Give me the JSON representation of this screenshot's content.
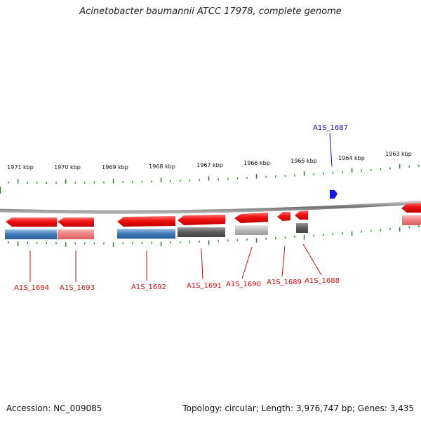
{
  "title": "Acinetobacter baumannii ATCC 17978, complete genome",
  "accession": "Accession: NC_009085",
  "summary": "Topology: circular; Length: 3,976,747 bp; Genes: 3,435",
  "colors": {
    "backbone": "#7a7a7a",
    "forward_gene": "#2020e0",
    "reverse_gene": "#e8141c",
    "tick": "#2a8a2a",
    "label_reverse": "#cc1010",
    "label_forward": "#1010b0"
  },
  "ticks_outer": [
    "1971 kbp",
    "1970 kbp",
    "1969 kbp",
    "1968 kbp",
    "1967 kbp",
    "1966 kbp",
    "1965 kbp",
    "1964 kbp",
    "1963 kbp"
  ],
  "genes": [
    {
      "label": "A1S_1694",
      "strand": "reverse"
    },
    {
      "label": "A1S_1693",
      "strand": "reverse"
    },
    {
      "label": "A1S_1692",
      "strand": "reverse"
    },
    {
      "label": "A1S_1691",
      "strand": "reverse"
    },
    {
      "label": "A1S_1690",
      "strand": "reverse"
    },
    {
      "label": "A1S_1689",
      "strand": "reverse"
    },
    {
      "label": "A1S_1688",
      "strand": "reverse"
    },
    {
      "label": "A1S_1687",
      "strand": "forward"
    }
  ]
}
